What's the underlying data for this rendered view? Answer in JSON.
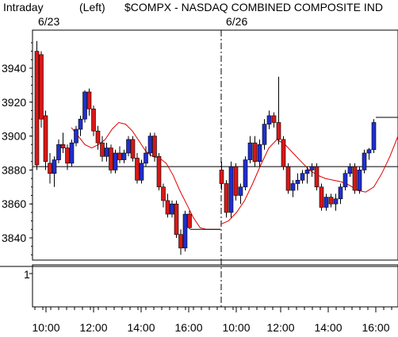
{
  "header": {
    "mode": "Intraday",
    "side": "(Left)",
    "symbol_title": "$COMPX - NASDAQ COMBINED COMPOSITE IND"
  },
  "chart_data": {
    "type": "candlestick",
    "days": [
      "6/23",
      "6/26"
    ],
    "y_ticks": [
      3840,
      3860,
      3880,
      3900,
      3920,
      3940
    ],
    "ylim": [
      3828,
      3962
    ],
    "x_ticks": [
      "10:00",
      "12:00",
      "14:00",
      "16:00",
      "10:00",
      "12:00",
      "14:00",
      "16:00"
    ],
    "reference_line": 3882,
    "lower_panel_tick": "1",
    "colors": {
      "up": "#1f2fcf",
      "down": "#d81818",
      "moving_average": "#e00000"
    },
    "day1_candles": [
      {
        "o": 3950,
        "h": 3956,
        "l": 3880,
        "c": 3883
      },
      {
        "o": 3948,
        "h": 3950,
        "l": 3905,
        "c": 3910
      },
      {
        "o": 3912,
        "h": 3915,
        "l": 3880,
        "c": 3885
      },
      {
        "o": 3884,
        "h": 3890,
        "l": 3872,
        "c": 3878
      },
      {
        "o": 3878,
        "h": 3888,
        "l": 3870,
        "c": 3886
      },
      {
        "o": 3886,
        "h": 3898,
        "l": 3884,
        "c": 3895
      },
      {
        "o": 3895,
        "h": 3902,
        "l": 3890,
        "c": 3893
      },
      {
        "o": 3893,
        "h": 3895,
        "l": 3880,
        "c": 3884
      },
      {
        "o": 3884,
        "h": 3898,
        "l": 3882,
        "c": 3896
      },
      {
        "o": 3896,
        "h": 3906,
        "l": 3894,
        "c": 3904
      },
      {
        "o": 3904,
        "h": 3912,
        "l": 3900,
        "c": 3910
      },
      {
        "o": 3910,
        "h": 3927,
        "l": 3908,
        "c": 3926
      },
      {
        "o": 3926,
        "h": 3928,
        "l": 3912,
        "c": 3916
      },
      {
        "o": 3916,
        "h": 3918,
        "l": 3900,
        "c": 3903
      },
      {
        "o": 3903,
        "h": 3906,
        "l": 3892,
        "c": 3896
      },
      {
        "o": 3896,
        "h": 3900,
        "l": 3885,
        "c": 3888
      },
      {
        "o": 3888,
        "h": 3896,
        "l": 3885,
        "c": 3893
      },
      {
        "o": 3893,
        "h": 3895,
        "l": 3878,
        "c": 3880
      },
      {
        "o": 3880,
        "h": 3892,
        "l": 3878,
        "c": 3890
      },
      {
        "o": 3890,
        "h": 3894,
        "l": 3884,
        "c": 3886
      },
      {
        "o": 3886,
        "h": 3892,
        "l": 3884,
        "c": 3890
      },
      {
        "o": 3890,
        "h": 3900,
        "l": 3888,
        "c": 3898
      },
      {
        "o": 3898,
        "h": 3900,
        "l": 3885,
        "c": 3887
      },
      {
        "o": 3887,
        "h": 3890,
        "l": 3872,
        "c": 3874
      },
      {
        "o": 3874,
        "h": 3886,
        "l": 3872,
        "c": 3884
      },
      {
        "o": 3884,
        "h": 3894,
        "l": 3882,
        "c": 3890
      },
      {
        "o": 3890,
        "h": 3902,
        "l": 3888,
        "c": 3900
      },
      {
        "o": 3900,
        "h": 3902,
        "l": 3885,
        "c": 3888
      },
      {
        "o": 3888,
        "h": 3890,
        "l": 3868,
        "c": 3870
      },
      {
        "o": 3870,
        "h": 3872,
        "l": 3858,
        "c": 3862
      },
      {
        "o": 3862,
        "h": 3866,
        "l": 3852,
        "c": 3854
      },
      {
        "o": 3854,
        "h": 3862,
        "l": 3852,
        "c": 3860
      },
      {
        "o": 3860,
        "h": 3862,
        "l": 3840,
        "c": 3842
      },
      {
        "o": 3842,
        "h": 3845,
        "l": 3830,
        "c": 3834
      },
      {
        "o": 3834,
        "h": 3856,
        "l": 3832,
        "c": 3854
      },
      {
        "o": 3854,
        "h": 3856,
        "l": 3845,
        "c": 3846
      }
    ],
    "day1_ma": [
      3905,
      3900,
      3895,
      3893,
      3895,
      3898,
      3904,
      3908,
      3907,
      3903,
      3897,
      3891,
      3888,
      3887,
      3884,
      3877,
      3868,
      3860,
      3852,
      3846,
      3845,
      3845,
      3845
    ],
    "day2_candles": [
      {
        "o": 3880,
        "h": 3885,
        "l": 3868,
        "c": 3872
      },
      {
        "o": 3872,
        "h": 3874,
        "l": 3852,
        "c": 3855
      },
      {
        "o": 3855,
        "h": 3885,
        "l": 3852,
        "c": 3882
      },
      {
        "o": 3882,
        "h": 3884,
        "l": 3862,
        "c": 3865
      },
      {
        "o": 3865,
        "h": 3872,
        "l": 3860,
        "c": 3870
      },
      {
        "o": 3870,
        "h": 3888,
        "l": 3868,
        "c": 3886
      },
      {
        "o": 3886,
        "h": 3900,
        "l": 3884,
        "c": 3896
      },
      {
        "o": 3896,
        "h": 3900,
        "l": 3882,
        "c": 3885
      },
      {
        "o": 3885,
        "h": 3898,
        "l": 3882,
        "c": 3895
      },
      {
        "o": 3895,
        "h": 3910,
        "l": 3892,
        "c": 3907
      },
      {
        "o": 3907,
        "h": 3915,
        "l": 3904,
        "c": 3912
      },
      {
        "o": 3912,
        "h": 3914,
        "l": 3905,
        "c": 3908
      },
      {
        "o": 3908,
        "h": 3935,
        "l": 3895,
        "c": 3898
      },
      {
        "o": 3898,
        "h": 3900,
        "l": 3880,
        "c": 3882
      },
      {
        "o": 3882,
        "h": 3884,
        "l": 3866,
        "c": 3868
      },
      {
        "o": 3868,
        "h": 3874,
        "l": 3864,
        "c": 3872
      },
      {
        "o": 3872,
        "h": 3878,
        "l": 3868,
        "c": 3874
      },
      {
        "o": 3874,
        "h": 3880,
        "l": 3872,
        "c": 3878
      },
      {
        "o": 3878,
        "h": 3882,
        "l": 3872,
        "c": 3880
      },
      {
        "o": 3880,
        "h": 3884,
        "l": 3876,
        "c": 3882
      },
      {
        "o": 3882,
        "h": 3884,
        "l": 3868,
        "c": 3870
      },
      {
        "o": 3870,
        "h": 3872,
        "l": 3856,
        "c": 3858
      },
      {
        "o": 3858,
        "h": 3866,
        "l": 3856,
        "c": 3864
      },
      {
        "o": 3864,
        "h": 3866,
        "l": 3858,
        "c": 3860
      },
      {
        "o": 3860,
        "h": 3866,
        "l": 3856,
        "c": 3863
      },
      {
        "o": 3863,
        "h": 3872,
        "l": 3860,
        "c": 3870
      },
      {
        "o": 3870,
        "h": 3880,
        "l": 3868,
        "c": 3878
      },
      {
        "o": 3878,
        "h": 3884,
        "l": 3876,
        "c": 3882
      },
      {
        "o": 3882,
        "h": 3884,
        "l": 3866,
        "c": 3868
      },
      {
        "o": 3868,
        "h": 3882,
        "l": 3866,
        "c": 3880
      },
      {
        "o": 3880,
        "h": 3892,
        "l": 3878,
        "c": 3890
      },
      {
        "o": 3890,
        "h": 3893,
        "l": 3886,
        "c": 3892
      },
      {
        "o": 3892,
        "h": 3910,
        "l": 3890,
        "c": 3908
      }
    ],
    "day2_ma": [
      3848,
      3850,
      3855,
      3862,
      3872,
      3883,
      3893,
      3898,
      3895,
      3890,
      3885,
      3880,
      3877,
      3875,
      3874,
      3873,
      3871,
      3868,
      3867,
      3870,
      3878,
      3888,
      3900
    ]
  }
}
